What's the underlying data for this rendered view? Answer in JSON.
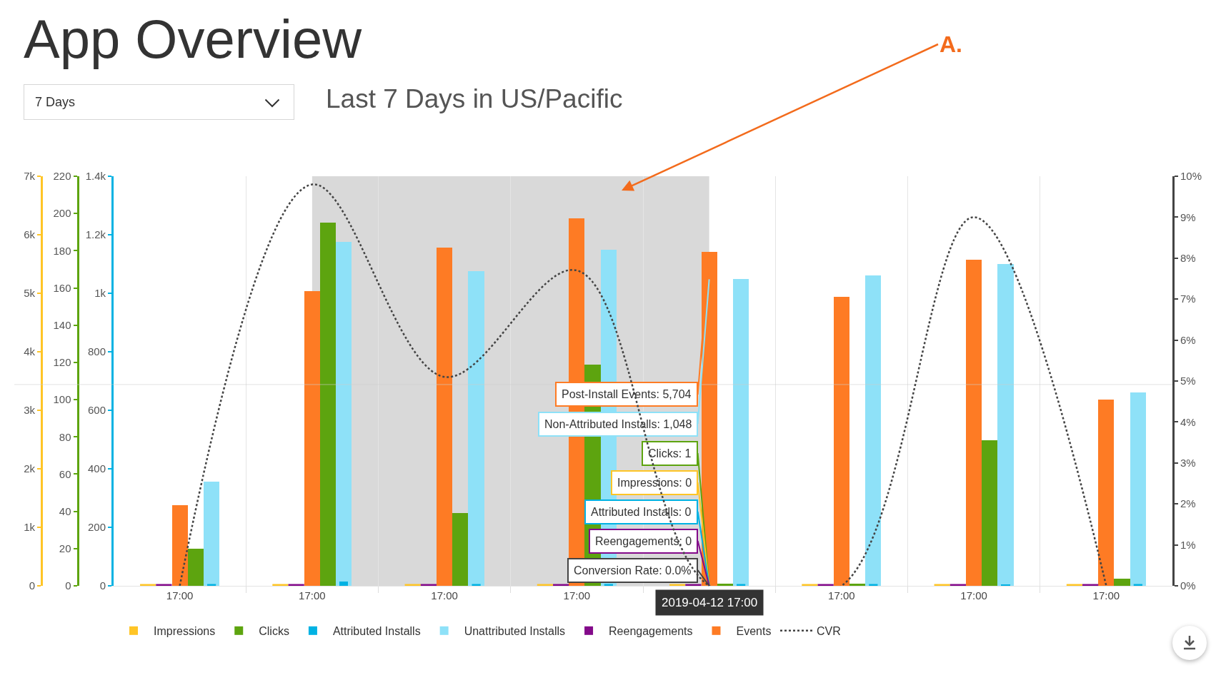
{
  "chart_data": [
    {
      "type": "bar",
      "title": "App Overview",
      "subtitle": "Last 7 Days in US/Pacific",
      "x": [
        "2019-04-08T17:00",
        "2019-04-09T17:00",
        "2019-04-10T17:00",
        "2019-04-11T17:00",
        "2019-04-12T17:00",
        "2019-04-13T17:00",
        "2019-04-14T17:00",
        "2019-04-15T17:00"
      ],
      "xlim": [
        "2019-04-08T05:00",
        "2019-04-16T05:00"
      ],
      "xticks": [
        {
          "value": "2019-04-08T17:00",
          "label": "17:00"
        },
        {
          "value": "2019-04-09T05:00",
          "label": null
        },
        {
          "value": "2019-04-09T17:00",
          "label": "17:00"
        },
        {
          "value": "2019-04-10T05:00",
          "label": null
        },
        {
          "value": "2019-04-10T17:00",
          "label": "17:00"
        },
        {
          "value": "2019-04-11T05:00",
          "label": null
        },
        {
          "value": "2019-04-11T17:00",
          "label": "17:00"
        },
        {
          "value": "2019-04-12T05:00",
          "label": null
        },
        {
          "value": "2019-04-13T05:00",
          "label": null
        },
        {
          "value": "2019-04-13T17:00",
          "label": "17:00"
        },
        {
          "value": "2019-04-14T05:00",
          "label": null
        },
        {
          "value": "2019-04-14T17:00",
          "label": "17:00"
        },
        {
          "value": "2019-04-15T05:00",
          "label": null
        },
        {
          "value": "2019-04-15T17:00",
          "label": "17:00"
        }
      ],
      "series": [
        {
          "name": "Impressions",
          "color": "#ffc526",
          "values": [
            0,
            0,
            0,
            0,
            0,
            0,
            0,
            0
          ],
          "axis": "y"
        },
        {
          "name": "Clicks",
          "color": "#5da40f",
          "values": [
            20,
            195,
            39,
            119,
            1,
            1,
            78,
            4
          ],
          "axis": "y2"
        },
        {
          "name": "Attributed Installs",
          "color": "#00b2e3",
          "values": [
            0,
            15,
            0,
            0,
            0,
            0,
            4,
            0
          ],
          "axis": "y3"
        },
        {
          "name": "Unattributed Installs",
          "color": "#8ee1f8",
          "values": [
            355,
            1175,
            1075,
            1150,
            1048,
            1060,
            1100,
            660
          ],
          "axis": "y3"
        },
        {
          "name": "Reengagements",
          "color": "#830a8a",
          "values": [
            0,
            0,
            0,
            0,
            0,
            0,
            0,
            0
          ],
          "axis": "y"
        },
        {
          "name": "Events",
          "color": "#fe7b24",
          "values": [
            1380,
            5040,
            5780,
            6280,
            5704,
            4940,
            5570,
            3180
          ],
          "axis": "y"
        }
      ],
      "ylim": [
        0,
        7000
      ],
      "yticks": [
        0,
        {
          "value": 1000,
          "label": "1k"
        },
        {
          "value": 2000,
          "label": "2k"
        },
        {
          "value": 3000,
          "label": "3k"
        },
        {
          "value": 4000,
          "label": "4k"
        },
        {
          "value": 5000,
          "label": "5k"
        },
        {
          "value": 6000,
          "label": "6k"
        },
        {
          "value": 7000,
          "label": "7k"
        }
      ],
      "y2lim": [
        0,
        220
      ],
      "y2ticks": [
        0,
        20,
        40,
        60,
        80,
        100,
        120,
        140,
        160,
        180,
        200,
        220
      ],
      "y3lim": [
        0,
        1400
      ],
      "y3ticks": [
        0,
        200,
        400,
        600,
        800,
        {
          "value": 1000,
          "label": "1k"
        },
        {
          "value": 1200,
          "label": "1.2k"
        },
        {
          "value": 1400,
          "label": "1.4k"
        }
      ],
      "grid": "x",
      "legend": "bottom",
      "bands": [
        {
          "axis": "x",
          "from": "2019-04-09T17:00",
          "to": "2019-04-12T17:00",
          "color": "#808080"
        }
      ],
      "ref_lines": [
        {
          "axis": "y",
          "value": 3440,
          "color": "#cccccc"
        }
      ],
      "annotations": [
        "7 Days",
        "A.",
        {
          "text": "Post-Install Events: 5,704",
          "x": "2019-04-12T17:00",
          "y": 5704
        },
        {
          "text": "Non-Attributed Installs: 1,048",
          "x": "2019-04-12T17:00",
          "y": 5240
        },
        {
          "text": "Clicks: 1",
          "x": "2019-04-12T17:00",
          "y": 0
        },
        {
          "text": "Impressions: 0",
          "x": "2019-04-12T17:00",
          "y": 0
        },
        {
          "text": "Attributed Installs: 0",
          "x": "2019-04-12T17:00",
          "y": 0
        },
        {
          "text": "Reengagements: 0",
          "x": "2019-04-12T17:00",
          "y": 0
        },
        {
          "text": "Conversion Rate: 0.0%",
          "x": "2019-04-12T17:00",
          "y": 0
        },
        "2019-04-12 17:00"
      ]
    },
    {
      "type": "line",
      "x": [
        "2019-04-08T17:00",
        "2019-04-09T17:00",
        "2019-04-10T17:00",
        "2019-04-11T17:00",
        "2019-04-12T17:00",
        "2019-04-13T17:00",
        "2019-04-14T17:00",
        "2019-04-15T17:00"
      ],
      "xlim": [
        "2019-04-08T05:00",
        "2019-04-16T05:00"
      ],
      "series": [
        {
          "name": "CVR",
          "color": "#444444",
          "values": [
            0,
            9.8,
            5.1,
            7.7,
            0,
            0,
            9.0,
            0
          ]
        }
      ],
      "line_style": "dotted",
      "ylim": [
        0,
        10
      ],
      "yticks": [
        {
          "value": 0,
          "label": "0%"
        },
        {
          "value": 1,
          "label": "1%"
        },
        {
          "value": 2,
          "label": "2%"
        },
        {
          "value": 3,
          "label": "3%"
        },
        {
          "value": 4,
          "label": "4%"
        },
        {
          "value": 5,
          "label": "5%"
        },
        {
          "value": 6,
          "label": "6%"
        },
        {
          "value": 7,
          "label": "7%"
        },
        {
          "value": 8,
          "label": "8%"
        },
        {
          "value": 9,
          "label": "9%"
        },
        {
          "value": 10,
          "label": "10%"
        }
      ],
      "tick_labels": "y",
      "legend": "bottom"
    }
  ]
}
